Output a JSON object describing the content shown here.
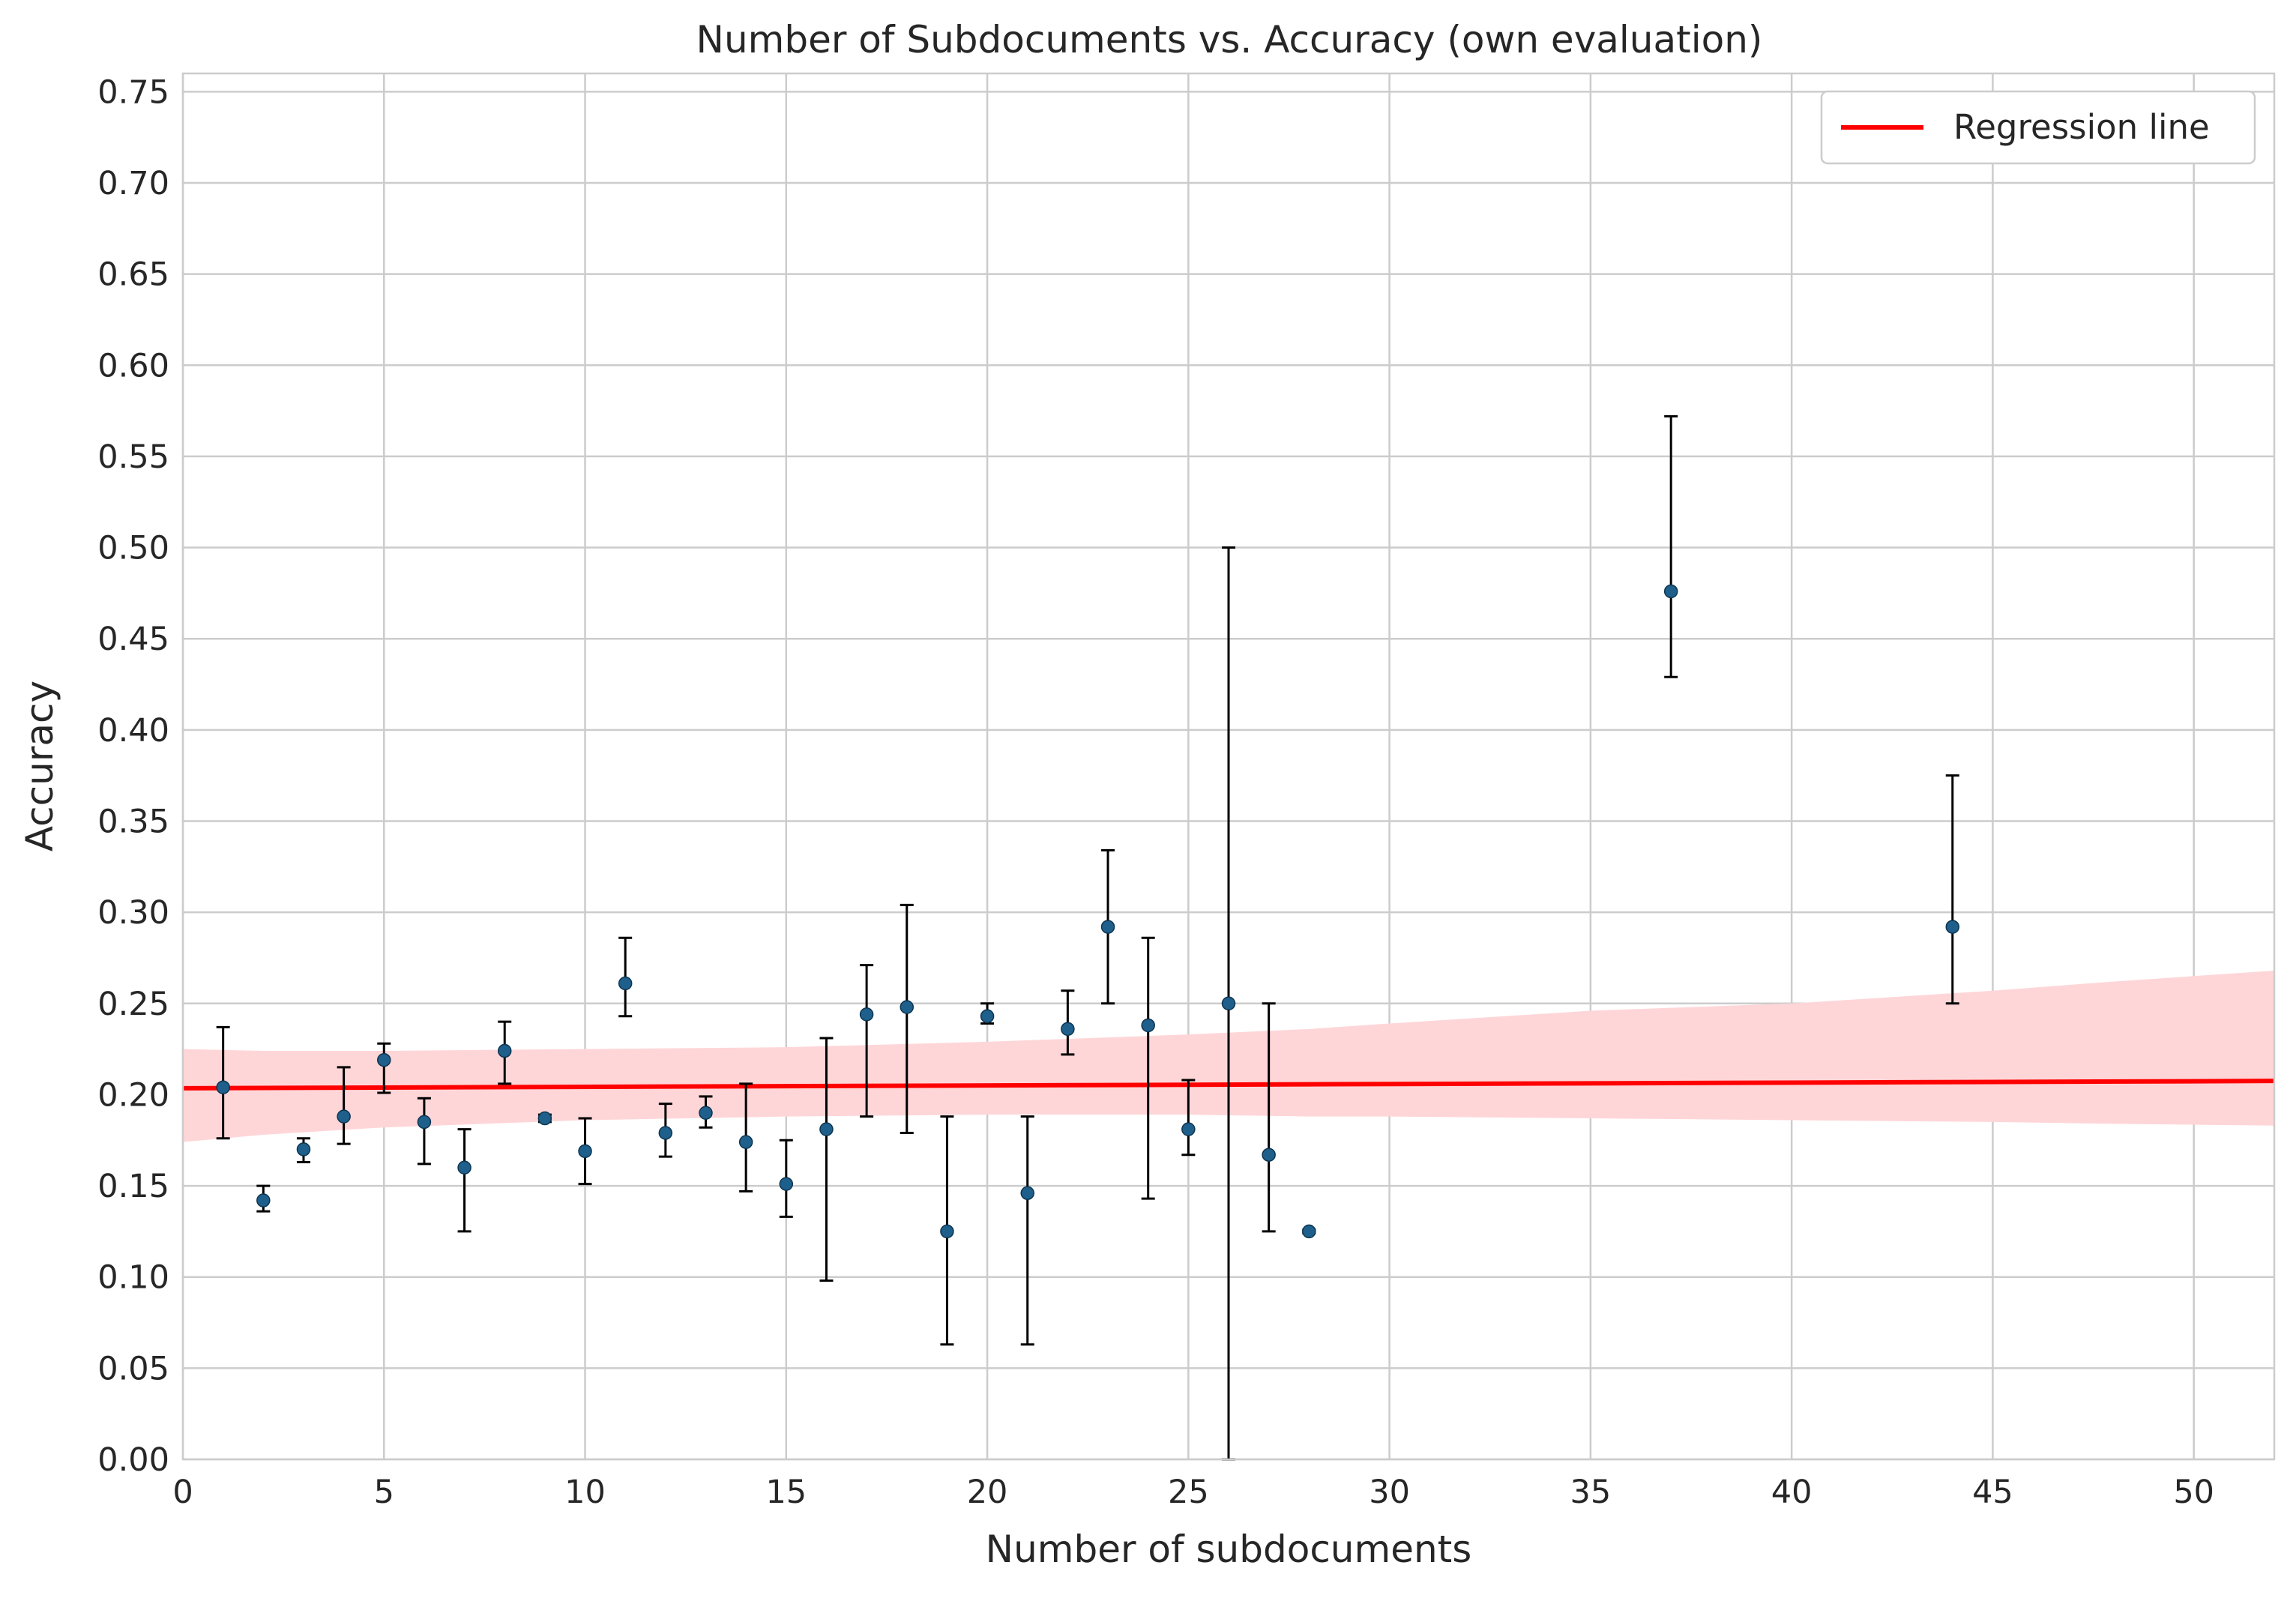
{
  "chart_data": {
    "type": "scatter",
    "title": "Number of Subdocuments vs. Accuracy (own evaluation)",
    "xlabel": "Number of subdocuments",
    "ylabel": "Accuracy",
    "xlim": [
      0,
      52
    ],
    "ylim": [
      0,
      0.76
    ],
    "xticks": [
      0,
      5,
      10,
      15,
      20,
      25,
      30,
      35,
      40,
      45,
      50
    ],
    "yticks": [
      0.0,
      0.05,
      0.1,
      0.15,
      0.2,
      0.25,
      0.3,
      0.35,
      0.4,
      0.45,
      0.5,
      0.55,
      0.6,
      0.65,
      0.7,
      0.75
    ],
    "ytick_labels": [
      "0.00",
      "0.05",
      "0.10",
      "0.15",
      "0.20",
      "0.25",
      "0.30",
      "0.35",
      "0.40",
      "0.45",
      "0.50",
      "0.55",
      "0.60",
      "0.65",
      "0.70",
      "0.75"
    ],
    "grid": true,
    "legend": {
      "position": "top-right",
      "entries": [
        "Regression line"
      ]
    },
    "colors": {
      "points": "#1f5f8b",
      "errorbars": "#000000",
      "regression": "#ff0000",
      "band": "#ffd6d8",
      "grid": "#cccccc"
    },
    "points": [
      {
        "x": 1,
        "y": 0.204,
        "lo": 0.176,
        "hi": 0.237
      },
      {
        "x": 2,
        "y": 0.142,
        "lo": 0.136,
        "hi": 0.15
      },
      {
        "x": 3,
        "y": 0.17,
        "lo": 0.163,
        "hi": 0.176
      },
      {
        "x": 4,
        "y": 0.188,
        "lo": 0.173,
        "hi": 0.215
      },
      {
        "x": 5,
        "y": 0.219,
        "lo": 0.201,
        "hi": 0.228
      },
      {
        "x": 6,
        "y": 0.185,
        "lo": 0.162,
        "hi": 0.198
      },
      {
        "x": 7,
        "y": 0.16,
        "lo": 0.125,
        "hi": 0.181
      },
      {
        "x": 8,
        "y": 0.224,
        "lo": 0.206,
        "hi": 0.24
      },
      {
        "x": 9,
        "y": 0.187,
        "lo": 0.185,
        "hi": 0.189
      },
      {
        "x": 10,
        "y": 0.169,
        "lo": 0.151,
        "hi": 0.187
      },
      {
        "x": 11,
        "y": 0.261,
        "lo": 0.243,
        "hi": 0.286
      },
      {
        "x": 12,
        "y": 0.179,
        "lo": 0.166,
        "hi": 0.195
      },
      {
        "x": 13,
        "y": 0.19,
        "lo": 0.182,
        "hi": 0.199
      },
      {
        "x": 14,
        "y": 0.174,
        "lo": 0.147,
        "hi": 0.206
      },
      {
        "x": 15,
        "y": 0.151,
        "lo": 0.133,
        "hi": 0.175
      },
      {
        "x": 16,
        "y": 0.181,
        "lo": 0.098,
        "hi": 0.231
      },
      {
        "x": 17,
        "y": 0.244,
        "lo": 0.188,
        "hi": 0.271
      },
      {
        "x": 18,
        "y": 0.248,
        "lo": 0.179,
        "hi": 0.304
      },
      {
        "x": 19,
        "y": 0.125,
        "lo": 0.063,
        "hi": 0.188
      },
      {
        "x": 20,
        "y": 0.243,
        "lo": 0.239,
        "hi": 0.25
      },
      {
        "x": 21,
        "y": 0.146,
        "lo": 0.063,
        "hi": 0.188
      },
      {
        "x": 22,
        "y": 0.236,
        "lo": 0.222,
        "hi": 0.257
      },
      {
        "x": 23,
        "y": 0.292,
        "lo": 0.25,
        "hi": 0.334
      },
      {
        "x": 24,
        "y": 0.238,
        "lo": 0.143,
        "hi": 0.286
      },
      {
        "x": 25,
        "y": 0.181,
        "lo": 0.167,
        "hi": 0.208
      },
      {
        "x": 26,
        "y": 0.25,
        "lo": 0.0,
        "hi": 0.5
      },
      {
        "x": 27,
        "y": 0.167,
        "lo": 0.125,
        "hi": 0.25
      },
      {
        "x": 28,
        "y": 0.125,
        "lo": 0.124,
        "hi": 0.126
      },
      {
        "x": 37,
        "y": 0.476,
        "lo": 0.429,
        "hi": 0.572
      },
      {
        "x": 44,
        "y": 0.292,
        "lo": 0.25,
        "hi": 0.375
      }
    ],
    "regression": {
      "name": "Regression line",
      "x": [
        0,
        52
      ],
      "y": [
        0.2035,
        0.2075
      ]
    },
    "confidence_band": {
      "x": [
        0,
        2,
        5,
        10,
        15,
        20,
        25,
        28,
        30,
        35,
        40,
        45,
        48,
        52
      ],
      "lower": [
        0.174,
        0.178,
        0.182,
        0.186,
        0.188,
        0.189,
        0.189,
        0.188,
        0.188,
        0.187,
        0.186,
        0.185,
        0.184,
        0.183
      ],
      "upper": [
        0.225,
        0.224,
        0.224,
        0.225,
        0.226,
        0.229,
        0.233,
        0.236,
        0.239,
        0.246,
        0.25,
        0.257,
        0.262,
        0.268
      ]
    }
  }
}
